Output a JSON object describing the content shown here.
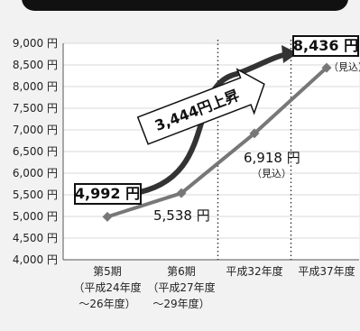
{
  "chart_data": {
    "type": "line",
    "categories": [
      [
        "第5期",
        "（平成24年度",
        "～26年度）"
      ],
      [
        "第6期",
        "（平成27年度",
        "～29年度）"
      ],
      [
        "平成32年度"
      ],
      [
        "平成37年度"
      ]
    ],
    "values": [
      4992,
      5538,
      6918,
      8436
    ],
    "ylim": [
      4000,
      9000
    ],
    "yticks": [
      "4,000 円",
      "4,500 円",
      "5,000 円",
      "5,500 円",
      "6,000 円",
      "6,500 円",
      "7,000 円",
      "7,500 円",
      "8,000 円",
      "8,500 円",
      "9,000 円"
    ],
    "grid": true,
    "annotations": {
      "p0": "4,992 円",
      "p1": "5,538 円",
      "p2": "6,918 円",
      "p2_note": "（見込）",
      "p3": "8,436 円",
      "p3_note": "（見込）",
      "arrow": "3,444円上昇"
    }
  }
}
